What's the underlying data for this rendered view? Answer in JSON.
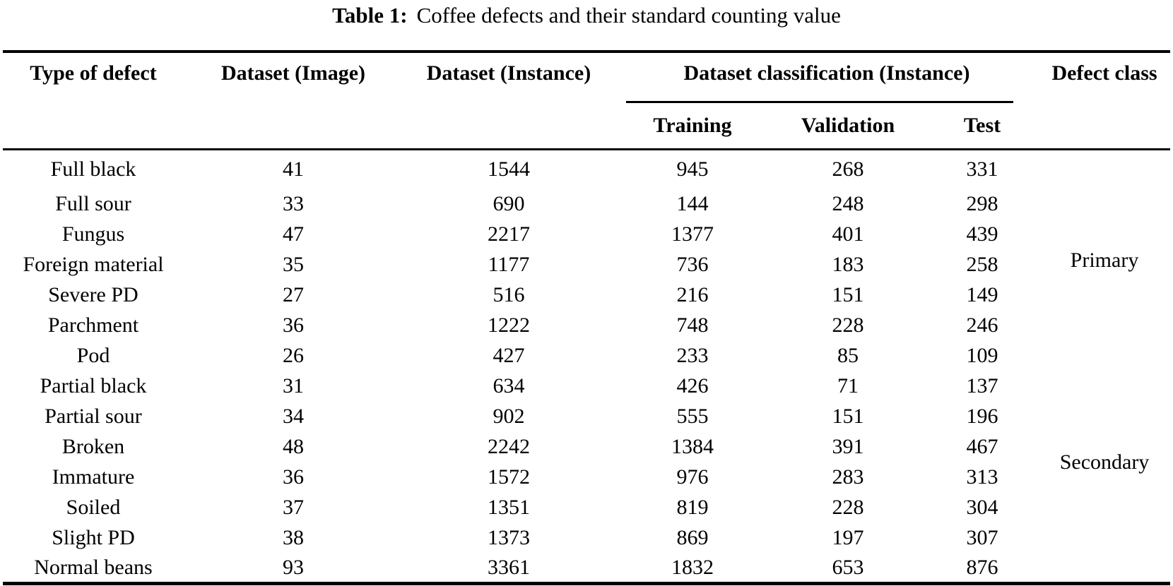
{
  "caption": {
    "label": "Table 1:",
    "text": "Coffee defects and their standard counting value"
  },
  "colors": {
    "background": "#ffffff",
    "text": "#000000",
    "rule": "#000000"
  },
  "table": {
    "header": {
      "type_of_defect": "Type of defect",
      "dataset_image": "Dataset (Image)",
      "dataset_instance": "Dataset (Instance)",
      "dataset_classification": "Dataset classification (Instance)",
      "defect_class": "Defect class",
      "sub": [
        "Training",
        "Validation",
        "Test"
      ]
    },
    "rows": [
      {
        "defect": "Full black",
        "image": 41,
        "instance": 1544,
        "training": 945,
        "validation": 268,
        "test": 331
      },
      {
        "defect": "Full sour",
        "image": 33,
        "instance": 690,
        "training": 144,
        "validation": 248,
        "test": 298
      },
      {
        "defect": "Fungus",
        "image": 47,
        "instance": 2217,
        "training": 1377,
        "validation": 401,
        "test": 439
      },
      {
        "defect": "Foreign material",
        "image": 35,
        "instance": 1177,
        "training": 736,
        "validation": 183,
        "test": 258
      },
      {
        "defect": "Severe PD",
        "image": 27,
        "instance": 516,
        "training": 216,
        "validation": 151,
        "test": 149
      },
      {
        "defect": "Parchment",
        "image": 36,
        "instance": 1222,
        "training": 748,
        "validation": 228,
        "test": 246
      },
      {
        "defect": "Pod",
        "image": 26,
        "instance": 427,
        "training": 233,
        "validation": 85,
        "test": 109
      },
      {
        "defect": "Partial black",
        "image": 31,
        "instance": 634,
        "training": 426,
        "validation": 71,
        "test": 137
      },
      {
        "defect": "Partial sour",
        "image": 34,
        "instance": 902,
        "training": 555,
        "validation": 151,
        "test": 196
      },
      {
        "defect": "Broken",
        "image": 48,
        "instance": 2242,
        "training": 1384,
        "validation": 391,
        "test": 467
      },
      {
        "defect": "Immature",
        "image": 36,
        "instance": 1572,
        "training": 976,
        "validation": 283,
        "test": 313
      },
      {
        "defect": "Soiled",
        "image": 37,
        "instance": 1351,
        "training": 819,
        "validation": 228,
        "test": 304
      },
      {
        "defect": "Slight PD",
        "image": 38,
        "instance": 1373,
        "training": 869,
        "validation": 197,
        "test": 307
      },
      {
        "defect": "Normal beans",
        "image": 93,
        "instance": 3361,
        "training": 1832,
        "validation": 653,
        "test": 876
      }
    ],
    "groups": [
      {
        "label": "Primary",
        "row_start": 0,
        "row_span": 7
      },
      {
        "label": "Secondary",
        "row_start": 7,
        "row_span": 6
      }
    ]
  }
}
